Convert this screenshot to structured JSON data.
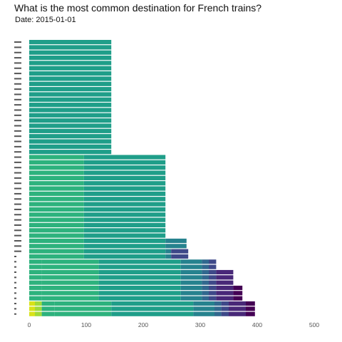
{
  "title": "What is the most common destination for French trains?",
  "subtitle": "Date: 2015-01-01",
  "colors": [
    "#d8e219",
    "#a0da39",
    "#2db27d",
    "#1f9e89",
    "#26828e",
    "#31688e",
    "#3e4989",
    "#482878",
    "#440154"
  ],
  "chart_data": {
    "type": "bar",
    "orientation": "horizontal",
    "stacked": true,
    "xlim": [
      0,
      500
    ],
    "x_ticks": [
      0,
      100,
      200,
      300,
      400,
      500
    ],
    "grid": false,
    "legend": "none",
    "bars": [
      {
        "segments": [
          {
            "value": 10,
            "color": "#d8e219"
          },
          {
            "value": 12,
            "color": "#a0da39"
          },
          {
            "value": 22,
            "color": "#2db27d"
          },
          {
            "value": 100,
            "color": "#2db27d"
          },
          {
            "value": 144,
            "color": "#1f9e89"
          },
          {
            "value": 37,
            "color": "#26828e"
          },
          {
            "value": 12,
            "color": "#31688e"
          },
          {
            "value": 13,
            "color": "#3e4989"
          },
          {
            "value": 30,
            "color": "#482878"
          },
          {
            "value": 16,
            "color": "#440154"
          }
        ]
      },
      {
        "segments": [
          {
            "value": 10,
            "color": "#d8e219"
          },
          {
            "value": 12,
            "color": "#a0da39"
          },
          {
            "value": 22,
            "color": "#2db27d"
          },
          {
            "value": 100,
            "color": "#2db27d"
          },
          {
            "value": 144,
            "color": "#1f9e89"
          },
          {
            "value": 37,
            "color": "#26828e"
          },
          {
            "value": 12,
            "color": "#31688e"
          },
          {
            "value": 13,
            "color": "#3e4989"
          },
          {
            "value": 30,
            "color": "#482878"
          },
          {
            "value": 16,
            "color": "#440154"
          }
        ]
      },
      {
        "segments": [
          {
            "value": 10,
            "color": "#d8e219"
          },
          {
            "value": 12,
            "color": "#a0da39"
          },
          {
            "value": 22,
            "color": "#2db27d"
          },
          {
            "value": 100,
            "color": "#2db27d"
          },
          {
            "value": 144,
            "color": "#1f9e89"
          },
          {
            "value": 37,
            "color": "#26828e"
          },
          {
            "value": 12,
            "color": "#31688e"
          },
          {
            "value": 13,
            "color": "#3e4989"
          },
          {
            "value": 30,
            "color": "#482878"
          },
          {
            "value": 16,
            "color": "#440154"
          }
        ]
      },
      {
        "segments": [
          {
            "value": 22,
            "color": "#2db27d"
          },
          {
            "value": 100,
            "color": "#2db27d"
          },
          {
            "value": 144,
            "color": "#1f9e89"
          },
          {
            "value": 37,
            "color": "#26828e"
          },
          {
            "value": 12,
            "color": "#31688e"
          },
          {
            "value": 13,
            "color": "#3e4989"
          },
          {
            "value": 30,
            "color": "#482878"
          },
          {
            "value": 16,
            "color": "#440154"
          }
        ]
      },
      {
        "segments": [
          {
            "value": 22,
            "color": "#2db27d"
          },
          {
            "value": 100,
            "color": "#2db27d"
          },
          {
            "value": 144,
            "color": "#1f9e89"
          },
          {
            "value": 37,
            "color": "#26828e"
          },
          {
            "value": 12,
            "color": "#31688e"
          },
          {
            "value": 13,
            "color": "#3e4989"
          },
          {
            "value": 30,
            "color": "#482878"
          },
          {
            "value": 16,
            "color": "#440154"
          }
        ]
      },
      {
        "segments": [
          {
            "value": 22,
            "color": "#2db27d"
          },
          {
            "value": 100,
            "color": "#2db27d"
          },
          {
            "value": 144,
            "color": "#1f9e89"
          },
          {
            "value": 37,
            "color": "#26828e"
          },
          {
            "value": 12,
            "color": "#31688e"
          },
          {
            "value": 13,
            "color": "#3e4989"
          },
          {
            "value": 30,
            "color": "#482878"
          },
          {
            "value": 16,
            "color": "#440154"
          }
        ]
      },
      {
        "segments": [
          {
            "value": 22,
            "color": "#2db27d"
          },
          {
            "value": 100,
            "color": "#2db27d"
          },
          {
            "value": 144,
            "color": "#1f9e89"
          },
          {
            "value": 37,
            "color": "#26828e"
          },
          {
            "value": 12,
            "color": "#31688e"
          },
          {
            "value": 13,
            "color": "#3e4989"
          },
          {
            "value": 30,
            "color": "#482878"
          }
        ]
      },
      {
        "segments": [
          {
            "value": 22,
            "color": "#2db27d"
          },
          {
            "value": 100,
            "color": "#2db27d"
          },
          {
            "value": 144,
            "color": "#1f9e89"
          },
          {
            "value": 37,
            "color": "#26828e"
          },
          {
            "value": 12,
            "color": "#31688e"
          },
          {
            "value": 13,
            "color": "#3e4989"
          },
          {
            "value": 30,
            "color": "#482878"
          }
        ]
      },
      {
        "segments": [
          {
            "value": 22,
            "color": "#2db27d"
          },
          {
            "value": 100,
            "color": "#2db27d"
          },
          {
            "value": 144,
            "color": "#1f9e89"
          },
          {
            "value": 37,
            "color": "#26828e"
          },
          {
            "value": 12,
            "color": "#31688e"
          },
          {
            "value": 13,
            "color": "#3e4989"
          },
          {
            "value": 30,
            "color": "#482878"
          }
        ]
      },
      {
        "segments": [
          {
            "value": 22,
            "color": "#2db27d"
          },
          {
            "value": 100,
            "color": "#2db27d"
          },
          {
            "value": 144,
            "color": "#1f9e89"
          },
          {
            "value": 37,
            "color": "#26828e"
          },
          {
            "value": 12,
            "color": "#31688e"
          },
          {
            "value": 13,
            "color": "#3e4989"
          }
        ]
      },
      {
        "segments": [
          {
            "value": 22,
            "color": "#2db27d"
          },
          {
            "value": 100,
            "color": "#2db27d"
          },
          {
            "value": 144,
            "color": "#1f9e89"
          },
          {
            "value": 37,
            "color": "#26828e"
          },
          {
            "value": 12,
            "color": "#31688e"
          },
          {
            "value": 13,
            "color": "#3e4989"
          }
        ]
      },
      {
        "segments": [
          {
            "value": 96,
            "color": "#2db27d"
          },
          {
            "value": 143,
            "color": "#1f9e89"
          },
          {
            "value": 10,
            "color": "#26828e"
          },
          {
            "value": 30,
            "color": "#3e4989"
          }
        ]
      },
      {
        "segments": [
          {
            "value": 96,
            "color": "#2db27d"
          },
          {
            "value": 143,
            "color": "#1f9e89"
          },
          {
            "value": 10,
            "color": "#26828e"
          },
          {
            "value": 30,
            "color": "#3e4989"
          }
        ]
      },
      {
        "segments": [
          {
            "value": 96,
            "color": "#2db27d"
          },
          {
            "value": 143,
            "color": "#1f9e89"
          },
          {
            "value": 37,
            "color": "#26828e"
          }
        ]
      },
      {
        "segments": [
          {
            "value": 96,
            "color": "#2db27d"
          },
          {
            "value": 143,
            "color": "#1f9e89"
          },
          {
            "value": 37,
            "color": "#26828e"
          }
        ]
      },
      {
        "segments": [
          {
            "value": 96,
            "color": "#2db27d"
          },
          {
            "value": 143,
            "color": "#1f9e89"
          }
        ]
      },
      {
        "segments": [
          {
            "value": 96,
            "color": "#2db27d"
          },
          {
            "value": 143,
            "color": "#1f9e89"
          }
        ]
      },
      {
        "segments": [
          {
            "value": 96,
            "color": "#2db27d"
          },
          {
            "value": 143,
            "color": "#1f9e89"
          }
        ]
      },
      {
        "segments": [
          {
            "value": 96,
            "color": "#2db27d"
          },
          {
            "value": 143,
            "color": "#1f9e89"
          }
        ]
      },
      {
        "segments": [
          {
            "value": 96,
            "color": "#2db27d"
          },
          {
            "value": 143,
            "color": "#1f9e89"
          }
        ]
      },
      {
        "segments": [
          {
            "value": 96,
            "color": "#2db27d"
          },
          {
            "value": 143,
            "color": "#1f9e89"
          }
        ]
      },
      {
        "segments": [
          {
            "value": 96,
            "color": "#2db27d"
          },
          {
            "value": 143,
            "color": "#1f9e89"
          }
        ]
      },
      {
        "segments": [
          {
            "value": 96,
            "color": "#2db27d"
          },
          {
            "value": 143,
            "color": "#1f9e89"
          }
        ]
      },
      {
        "segments": [
          {
            "value": 96,
            "color": "#2db27d"
          },
          {
            "value": 143,
            "color": "#1f9e89"
          }
        ]
      },
      {
        "segments": [
          {
            "value": 96,
            "color": "#2db27d"
          },
          {
            "value": 143,
            "color": "#1f9e89"
          }
        ]
      },
      {
        "segments": [
          {
            "value": 96,
            "color": "#2db27d"
          },
          {
            "value": 143,
            "color": "#1f9e89"
          }
        ]
      },
      {
        "segments": [
          {
            "value": 96,
            "color": "#2db27d"
          },
          {
            "value": 143,
            "color": "#1f9e89"
          }
        ]
      },
      {
        "segments": [
          {
            "value": 96,
            "color": "#2db27d"
          },
          {
            "value": 143,
            "color": "#1f9e89"
          }
        ]
      },
      {
        "segments": [
          {
            "value": 96,
            "color": "#2db27d"
          },
          {
            "value": 143,
            "color": "#1f9e89"
          }
        ]
      },
      {
        "segments": [
          {
            "value": 96,
            "color": "#2db27d"
          },
          {
            "value": 143,
            "color": "#1f9e89"
          }
        ]
      },
      {
        "segments": [
          {
            "value": 96,
            "color": "#2db27d"
          },
          {
            "value": 143,
            "color": "#1f9e89"
          }
        ]
      },
      {
        "segments": [
          {
            "value": 144,
            "color": "#1f9e89"
          }
        ]
      },
      {
        "segments": [
          {
            "value": 144,
            "color": "#1f9e89"
          }
        ]
      },
      {
        "segments": [
          {
            "value": 144,
            "color": "#1f9e89"
          }
        ]
      },
      {
        "segments": [
          {
            "value": 144,
            "color": "#1f9e89"
          }
        ]
      },
      {
        "segments": [
          {
            "value": 144,
            "color": "#1f9e89"
          }
        ]
      },
      {
        "segments": [
          {
            "value": 144,
            "color": "#1f9e89"
          }
        ]
      },
      {
        "segments": [
          {
            "value": 144,
            "color": "#1f9e89"
          }
        ]
      },
      {
        "segments": [
          {
            "value": 144,
            "color": "#1f9e89"
          }
        ]
      },
      {
        "segments": [
          {
            "value": 144,
            "color": "#1f9e89"
          }
        ]
      },
      {
        "segments": [
          {
            "value": 144,
            "color": "#1f9e89"
          }
        ]
      },
      {
        "segments": [
          {
            "value": 144,
            "color": "#1f9e89"
          }
        ]
      },
      {
        "segments": [
          {
            "value": 144,
            "color": "#1f9e89"
          }
        ]
      },
      {
        "segments": [
          {
            "value": 144,
            "color": "#1f9e89"
          }
        ]
      },
      {
        "segments": [
          {
            "value": 144,
            "color": "#1f9e89"
          }
        ]
      },
      {
        "segments": [
          {
            "value": 144,
            "color": "#1f9e89"
          }
        ]
      },
      {
        "segments": [
          {
            "value": 144,
            "color": "#1f9e89"
          }
        ]
      },
      {
        "segments": [
          {
            "value": 144,
            "color": "#1f9e89"
          }
        ]
      },
      {
        "segments": [
          {
            "value": 144,
            "color": "#1f9e89"
          }
        ]
      },
      {
        "segments": [
          {
            "value": 144,
            "color": "#1f9e89"
          }
        ]
      },
      {
        "segments": [
          {
            "value": 144,
            "color": "#1f9e89"
          }
        ]
      },
      {
        "segments": [
          {
            "value": 144,
            "color": "#1f9e89"
          }
        ]
      },
      {
        "segments": [
          {
            "value": 144,
            "color": "#1f9e89"
          }
        ]
      }
    ]
  }
}
